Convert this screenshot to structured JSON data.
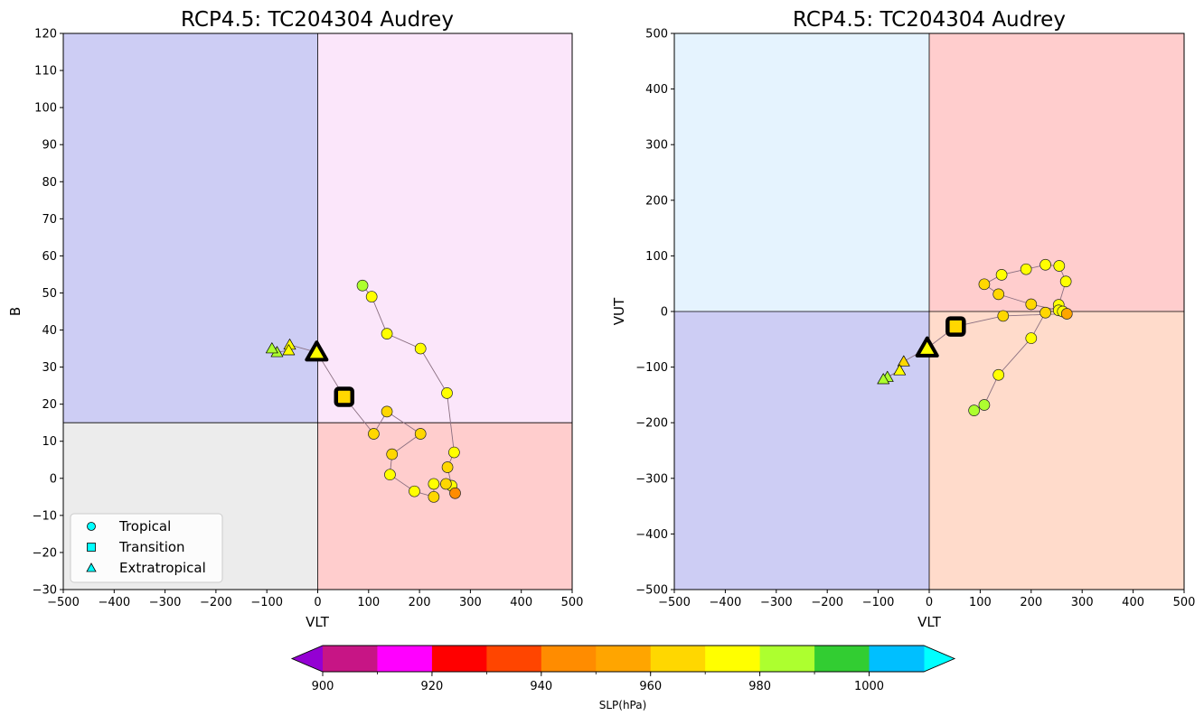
{
  "chart_data": [
    {
      "type": "scatter",
      "title": "RCP4.5: TC204304 Audrey",
      "xlabel": "VLT",
      "ylabel": "B",
      "xlim": [
        -500,
        500
      ],
      "ylim": [
        -30,
        120
      ],
      "xticks": [
        -500,
        -400,
        -300,
        -200,
        -100,
        0,
        100,
        200,
        300,
        400,
        500
      ],
      "yticks": [
        -30,
        -20,
        -10,
        0,
        10,
        20,
        30,
        40,
        50,
        60,
        70,
        80,
        90,
        100,
        110,
        120
      ],
      "xtick_labels": [
        "−500",
        "−400",
        "−300",
        "−200",
        "−100",
        "0",
        "100",
        "200",
        "300",
        "400",
        "500"
      ],
      "ytick_labels": [
        "−30",
        "−20",
        "−10",
        "0",
        "10",
        "20",
        "30",
        "40",
        "50",
        "60",
        "70",
        "80",
        "90",
        "100",
        "110",
        "120"
      ],
      "quadrant_split": {
        "x": 0,
        "y": 15
      },
      "quadrant_colors": {
        "upper_left": "#cdcdf4",
        "upper_right": "#fbe6fa",
        "lower_left": "#ececec",
        "lower_right": "#ffcdcd"
      },
      "legend": {
        "position": "lower-left",
        "entries": [
          {
            "label": "Tropical",
            "marker": "circle"
          },
          {
            "label": "Transition",
            "marker": "square"
          },
          {
            "label": "Extratropical",
            "marker": "triangle"
          }
        ]
      },
      "track": [
        {
          "x": 88,
          "y": 52,
          "slp": 985,
          "marker": "circle"
        },
        {
          "x": 106,
          "y": 49,
          "slp": 978,
          "marker": "circle"
        },
        {
          "x": 136,
          "y": 39,
          "slp": 975,
          "marker": "circle"
        },
        {
          "x": 202,
          "y": 35,
          "slp": 973,
          "marker": "circle"
        },
        {
          "x": 254,
          "y": 23,
          "slp": 973,
          "marker": "circle"
        },
        {
          "x": 268,
          "y": 7,
          "slp": 973,
          "marker": "circle"
        },
        {
          "x": 255,
          "y": 3,
          "slp": 965,
          "marker": "circle"
        },
        {
          "x": 263,
          "y": -2,
          "slp": 971,
          "marker": "circle"
        },
        {
          "x": 270,
          "y": -4,
          "slp": 948,
          "marker": "circle"
        },
        {
          "x": 252,
          "y": -1.5,
          "slp": 964,
          "marker": "circle"
        },
        {
          "x": 228,
          "y": -1.5,
          "slp": 973,
          "marker": "circle"
        },
        {
          "x": 228,
          "y": -5,
          "slp": 962,
          "marker": "circle"
        },
        {
          "x": 190,
          "y": -3.5,
          "slp": 974,
          "marker": "circle"
        },
        {
          "x": 142,
          "y": 1,
          "slp": 973,
          "marker": "circle"
        },
        {
          "x": 146,
          "y": 6.5,
          "slp": 963,
          "marker": "circle"
        },
        {
          "x": 202,
          "y": 12,
          "slp": 962,
          "marker": "circle"
        },
        {
          "x": 136,
          "y": 18,
          "slp": 962,
          "marker": "circle"
        },
        {
          "x": 110,
          "y": 12,
          "slp": 962,
          "marker": "circle"
        },
        {
          "x": 52,
          "y": 22,
          "slp": 962,
          "marker": "square",
          "highlight": true
        },
        {
          "x": -2,
          "y": 34,
          "slp": 972,
          "marker": "triangle",
          "highlight": true
        },
        {
          "x": -55,
          "y": 36,
          "slp": 973,
          "marker": "triangle"
        },
        {
          "x": -57,
          "y": 34.5,
          "slp": 974,
          "marker": "triangle"
        },
        {
          "x": -80,
          "y": 34,
          "slp": 980,
          "marker": "triangle"
        },
        {
          "x": -90,
          "y": 35,
          "slp": 983,
          "marker": "triangle"
        }
      ]
    },
    {
      "type": "scatter",
      "title": "RCP4.5: TC204304 Audrey",
      "xlabel": "VLT",
      "ylabel": "VUT",
      "xlim": [
        -500,
        500
      ],
      "ylim": [
        -500,
        500
      ],
      "xticks": [
        -500,
        -400,
        -300,
        -200,
        -100,
        0,
        100,
        200,
        300,
        400,
        500
      ],
      "yticks": [
        -500,
        -400,
        -300,
        -200,
        -100,
        0,
        100,
        200,
        300,
        400,
        500
      ],
      "xtick_labels": [
        "−500",
        "−400",
        "−300",
        "−200",
        "−100",
        "0",
        "100",
        "200",
        "300",
        "400",
        "500"
      ],
      "ytick_labels": [
        "−500",
        "−400",
        "−300",
        "−200",
        "−100",
        "0",
        "100",
        "200",
        "300",
        "400",
        "500"
      ],
      "quadrant_split": {
        "x": 0,
        "y": 0
      },
      "quadrant_colors": {
        "upper_left": "#e5f3fe",
        "upper_right": "#ffcdcd",
        "lower_left": "#cdcdf4",
        "lower_right": "#ffdbcb"
      },
      "track": [
        {
          "x": 88,
          "y": -178,
          "slp": 986,
          "marker": "circle"
        },
        {
          "x": 108,
          "y": -168,
          "slp": 980,
          "marker": "circle"
        },
        {
          "x": 136,
          "y": -114,
          "slp": 978,
          "marker": "circle"
        },
        {
          "x": 200,
          "y": -48,
          "slp": 975,
          "marker": "circle"
        },
        {
          "x": 228,
          "y": -2,
          "slp": 968,
          "marker": "circle"
        },
        {
          "x": 254,
          "y": 12,
          "slp": 973,
          "marker": "circle"
        },
        {
          "x": 268,
          "y": 54,
          "slp": 973,
          "marker": "circle"
        },
        {
          "x": 255,
          "y": 82,
          "slp": 975,
          "marker": "circle"
        },
        {
          "x": 228,
          "y": 84,
          "slp": 975,
          "marker": "circle"
        },
        {
          "x": 190,
          "y": 76,
          "slp": 973,
          "marker": "circle"
        },
        {
          "x": 142,
          "y": 66,
          "slp": 973,
          "marker": "circle"
        },
        {
          "x": 108,
          "y": 49,
          "slp": 965,
          "marker": "circle"
        },
        {
          "x": 136,
          "y": 31,
          "slp": 965,
          "marker": "circle"
        },
        {
          "x": 200,
          "y": 13,
          "slp": 965,
          "marker": "circle"
        },
        {
          "x": 254,
          "y": 2,
          "slp": 972,
          "marker": "circle"
        },
        {
          "x": 262,
          "y": 0,
          "slp": 972,
          "marker": "circle"
        },
        {
          "x": 270,
          "y": -4,
          "slp": 950,
          "marker": "circle"
        },
        {
          "x": 145,
          "y": -8,
          "slp": 962,
          "marker": "circle"
        },
        {
          "x": 52,
          "y": -27,
          "slp": 962,
          "marker": "square",
          "highlight": true
        },
        {
          "x": -4,
          "y": -66,
          "slp": 972,
          "marker": "triangle",
          "highlight": true
        },
        {
          "x": -50,
          "y": -90,
          "slp": 963,
          "marker": "triangle"
        },
        {
          "x": -58,
          "y": -106,
          "slp": 975,
          "marker": "triangle"
        },
        {
          "x": -82,
          "y": -118,
          "slp": 980,
          "marker": "triangle"
        },
        {
          "x": -90,
          "y": -122,
          "slp": 984,
          "marker": "triangle"
        }
      ]
    }
  ],
  "colorbar": {
    "label": "SLP(hPa)",
    "bounds": [
      900,
      910,
      920,
      930,
      940,
      950,
      960,
      970,
      980,
      990,
      1000,
      1010
    ],
    "colors": [
      "#c71585",
      "#ff00ff",
      "#ff0000",
      "#ff4500",
      "#ff8c00",
      "#ffa500",
      "#ffd700",
      "#ffff00",
      "#adff2f",
      "#32cd32",
      "#00bfff"
    ],
    "under_color": "#9400d3",
    "over_color": "#00ffff",
    "tick_values": [
      900,
      920,
      940,
      960,
      980,
      1000
    ],
    "tick_labels": [
      "900",
      "920",
      "940",
      "960",
      "980",
      "1000"
    ]
  }
}
